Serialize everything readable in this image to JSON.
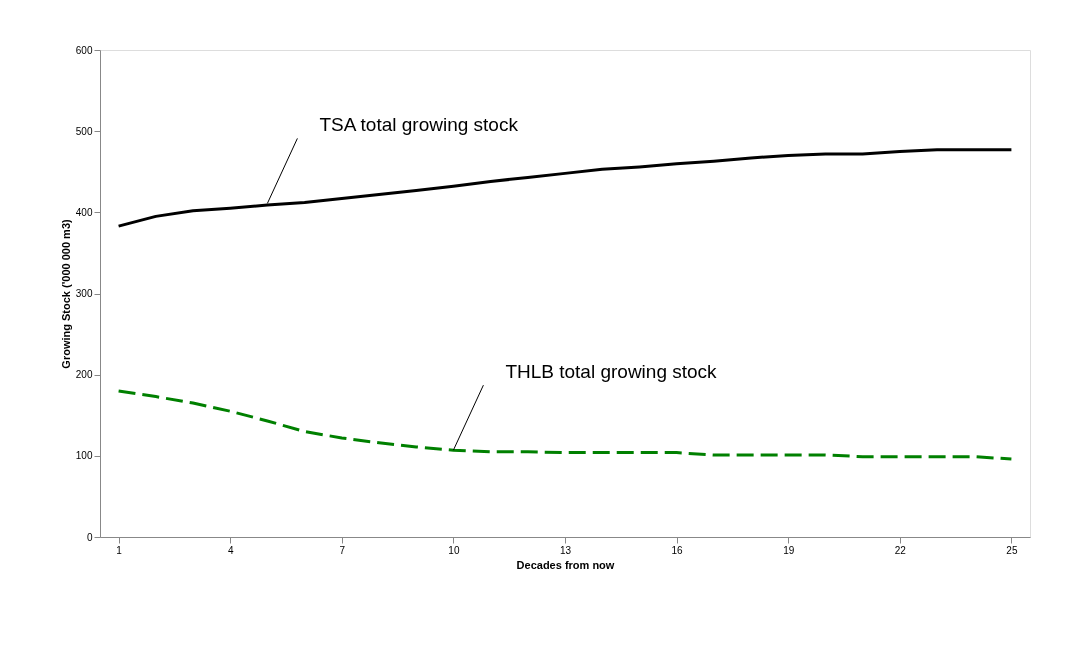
{
  "chart_data": {
    "type": "line",
    "xlabel": "Decades from now",
    "ylabel": "Growing Stock ('000 000 m3)",
    "x": [
      1,
      2,
      3,
      4,
      5,
      6,
      7,
      8,
      9,
      10,
      11,
      12,
      13,
      14,
      15,
      16,
      17,
      18,
      19,
      20,
      21,
      22,
      23,
      24,
      25
    ],
    "xlim": [
      0.5,
      25.5
    ],
    "xticks": [
      1,
      4,
      7,
      10,
      13,
      16,
      19,
      22,
      25
    ],
    "ylim": [
      0,
      600
    ],
    "yticks": [
      0,
      100,
      200,
      300,
      400,
      500,
      600
    ],
    "grid": false,
    "marker": "none",
    "series": [
      {
        "color": "#000000",
        "line_style": "solid",
        "values": [
          383,
          395,
          402,
          405,
          409,
          412,
          417,
          422,
          427,
          432,
          438,
          443,
          448,
          453,
          456,
          460,
          463,
          467,
          470,
          472,
          472,
          475,
          477,
          477,
          477
        ]
      },
      {
        "color": "#008000",
        "line_style": "dashed",
        "values": [
          180,
          173,
          165,
          155,
          143,
          130,
          122,
          116,
          111,
          107,
          105,
          105,
          104,
          104,
          104,
          104,
          101,
          101,
          101,
          101,
          99,
          99,
          99,
          99,
          96
        ]
      }
    ],
    "annotations": [
      {
        "text": "TSA total growing stock",
        "x": 5,
        "y": 411
      },
      {
        "text": "THLB total growing stock",
        "x": 10,
        "y": 107
      }
    ]
  }
}
